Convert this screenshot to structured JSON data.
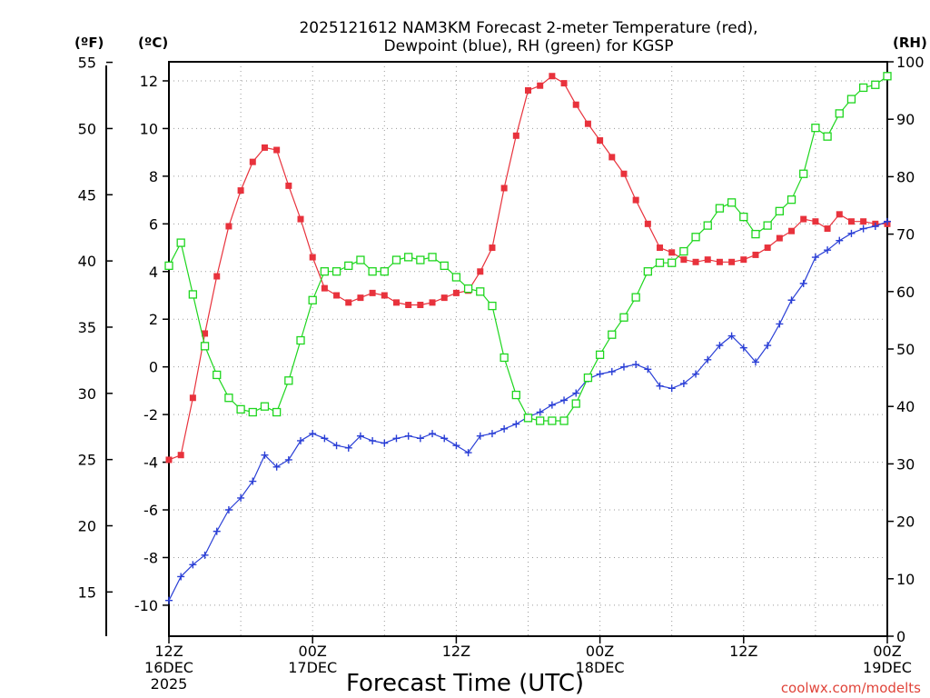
{
  "chart_data": {
    "type": "line",
    "title_line1": "2025121612 NAM3KM Forecast 2-meter Temperature (red),",
    "title_line2": "Dewpoint (blue), RH (green) for KGSP",
    "xlabel": "Forecast Time (UTC)",
    "credit": "coolwx.com/modelts",
    "units": {
      "fahrenheit": "(ºF)",
      "celsius": "(ºC)",
      "rh": "(RH)"
    },
    "x_range_hours": [
      0,
      60
    ],
    "x_ticks": [
      {
        "hour": 0,
        "line1": "12Z",
        "line2": "16DEC",
        "line3": "2025"
      },
      {
        "hour": 12,
        "line1": "00Z",
        "line2": "17DEC",
        "line3": ""
      },
      {
        "hour": 24,
        "line1": "12Z",
        "line2": "",
        "line3": ""
      },
      {
        "hour": 36,
        "line1": "00Z",
        "line2": "18DEC",
        "line3": ""
      },
      {
        "hour": 48,
        "line1": "12Z",
        "line2": "",
        "line3": ""
      },
      {
        "hour": 60,
        "line1": "00Z",
        "line2": "19DEC",
        "line3": ""
      }
    ],
    "y_celsius_range": [
      -11.3,
      12.8
    ],
    "y_celsius_ticks": [
      "-10",
      "-8",
      "-6",
      "-4",
      "-2",
      "0",
      "2",
      "4",
      "6",
      "8",
      "10",
      "12"
    ],
    "y_fahrenheit_ticks": [
      "15",
      "20",
      "25",
      "30",
      "35",
      "40",
      "45",
      "50",
      "55"
    ],
    "y_rh_range": [
      0,
      100
    ],
    "y_rh_ticks": [
      "0",
      "10",
      "20",
      "30",
      "40",
      "50",
      "60",
      "70",
      "80",
      "90",
      "100"
    ],
    "series": [
      {
        "name": "Temperature",
        "unit": "C",
        "color": "#e8323c",
        "marker": "filled-square",
        "values": [
          -3.9,
          -3.7,
          -1.3,
          1.4,
          3.8,
          5.9,
          7.4,
          8.6,
          9.2,
          9.1,
          7.6,
          6.2,
          4.6,
          3.3,
          3.0,
          2.7,
          2.9,
          3.1,
          3.0,
          2.7,
          2.6,
          2.6,
          2.7,
          2.9,
          3.1,
          3.2,
          4.0,
          5.0,
          7.5,
          9.7,
          11.6,
          11.8,
          12.2,
          11.9,
          11.0,
          10.2,
          9.5,
          8.8,
          8.1,
          7.0,
          6.0,
          5.0,
          4.8,
          4.5,
          4.4,
          4.5,
          4.4,
          4.4,
          4.5,
          4.7,
          5.0,
          5.4,
          5.7,
          6.2,
          6.1,
          5.8,
          6.4,
          6.1,
          6.1,
          6.0,
          6.0
        ]
      },
      {
        "name": "Dewpoint",
        "unit": "C",
        "color": "#2a3fd6",
        "marker": "plus",
        "values": [
          -9.8,
          -8.8,
          -8.3,
          -7.9,
          -6.9,
          -6.0,
          -5.5,
          -4.8,
          -3.7,
          -4.2,
          -3.9,
          -3.1,
          -2.8,
          -3.0,
          -3.3,
          -3.4,
          -2.9,
          -3.1,
          -3.2,
          -3.0,
          -2.9,
          -3.0,
          -2.8,
          -3.0,
          -3.3,
          -3.6,
          -2.9,
          -2.8,
          -2.6,
          -2.4,
          -2.1,
          -1.9,
          -1.6,
          -1.4,
          -1.1,
          -0.5,
          -0.3,
          -0.2,
          0.0,
          0.1,
          -0.1,
          -0.8,
          -0.9,
          -0.7,
          -0.3,
          0.3,
          0.9,
          1.3,
          0.8,
          0.2,
          0.9,
          1.8,
          2.8,
          3.5,
          4.6,
          4.9,
          5.3,
          5.6,
          5.8,
          5.9,
          6.1
        ]
      },
      {
        "name": "RH",
        "unit": "%",
        "color": "#1ed61e",
        "marker": "open-square",
        "values": [
          64.5,
          68.5,
          59.5,
          50.5,
          45.5,
          41.5,
          39.5,
          39.0,
          40.0,
          39.0,
          44.5,
          51.5,
          58.5,
          63.5,
          63.5,
          64.5,
          65.5,
          63.5,
          63.5,
          65.5,
          66.0,
          65.5,
          66.0,
          64.5,
          62.5,
          60.5,
          60.0,
          57.5,
          48.5,
          42.0,
          38.0,
          37.5,
          37.5,
          37.5,
          40.5,
          45.0,
          49.0,
          52.5,
          55.5,
          59.0,
          63.5,
          65.0,
          65.0,
          67.0,
          69.5,
          71.5,
          74.5,
          75.5,
          73.0,
          70.0,
          71.5,
          74.0,
          76.0,
          80.5,
          88.5,
          87.0,
          91.0,
          93.5,
          95.5,
          96.0,
          97.5
        ]
      }
    ]
  }
}
